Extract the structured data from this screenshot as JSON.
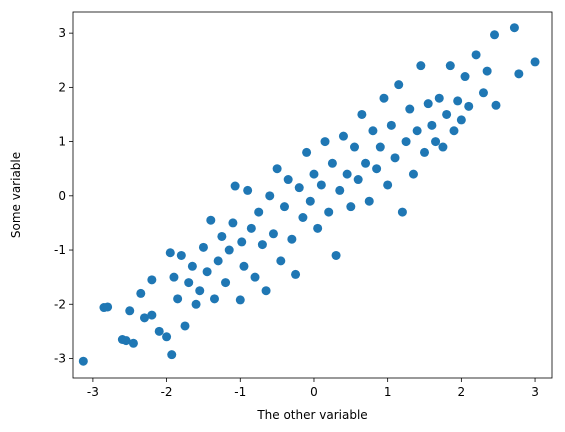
{
  "chart_data": {
    "type": "scatter",
    "x_label": "The other variable",
    "y_label": "Some variable",
    "xlim": [
      -3.27,
      3.23
    ],
    "ylim": [
      -3.36,
      3.39
    ],
    "xticks": [
      -3,
      -2,
      -1,
      0,
      1,
      2,
      3
    ],
    "yticks": [
      -3,
      -2,
      -1,
      0,
      1,
      2,
      3
    ],
    "color": "#1f77b4",
    "x": [
      -3.13,
      -2.85,
      -2.8,
      -2.6,
      -2.55,
      -2.45,
      -2.5,
      -2.35,
      -2.3,
      -2.2,
      -2.2,
      -2.1,
      -2.0,
      -1.95,
      -1.93,
      -1.9,
      -1.85,
      -1.8,
      -1.75,
      -1.7,
      -1.65,
      -1.6,
      -1.55,
      -1.5,
      -1.45,
      -1.4,
      -1.35,
      -1.3,
      -1.25,
      -1.2,
      -1.15,
      -1.1,
      -1.07,
      -1.0,
      -0.98,
      -0.95,
      -0.9,
      -0.85,
      -0.8,
      -0.75,
      -0.7,
      -0.65,
      -0.6,
      -0.55,
      -0.5,
      -0.45,
      -0.4,
      -0.35,
      -0.3,
      -0.25,
      -0.2,
      -0.15,
      -0.1,
      -0.05,
      0,
      0.05,
      0.1,
      0.15,
      0.2,
      0.25,
      0.3,
      0.35,
      0.4,
      0.45,
      0.5,
      0.55,
      0.6,
      0.65,
      0.7,
      0.75,
      0.8,
      0.85,
      0.9,
      0.95,
      1.0,
      1.05,
      1.1,
      1.15,
      1.2,
      1.25,
      1.3,
      1.35,
      1.4,
      1.45,
      1.5,
      1.55,
      1.6,
      1.65,
      1.7,
      1.75,
      1.8,
      1.85,
      1.9,
      1.95,
      2.0,
      2.05,
      2.1,
      2.2,
      2.3,
      2.35,
      2.45,
      2.47,
      2.72,
      2.78,
      3.0
    ],
    "y": [
      -3.05,
      -2.06,
      -2.05,
      -2.65,
      -2.67,
      -2.72,
      -2.12,
      -1.8,
      -2.25,
      -1.55,
      -2.2,
      -2.5,
      -2.6,
      -1.05,
      -2.93,
      -1.5,
      -1.9,
      -1.1,
      -2.4,
      -1.6,
      -1.3,
      -2.0,
      -1.75,
      -0.95,
      -1.4,
      -0.45,
      -1.9,
      -1.2,
      -0.75,
      -1.6,
      -1.0,
      -0.5,
      0.18,
      -1.92,
      -0.85,
      -1.3,
      0.1,
      -0.6,
      -1.5,
      -0.3,
      -0.9,
      -1.75,
      0.0,
      -0.7,
      0.5,
      -1.2,
      -0.2,
      0.3,
      -0.8,
      -1.45,
      0.15,
      -0.4,
      0.8,
      -0.1,
      0.4,
      -0.6,
      0.2,
      1.0,
      -0.3,
      0.6,
      -1.1,
      0.1,
      1.1,
      0.4,
      -0.2,
      0.9,
      0.3,
      1.5,
      0.6,
      -0.1,
      1.2,
      0.5,
      0.9,
      1.8,
      0.2,
      1.3,
      0.7,
      2.05,
      -0.3,
      1.0,
      1.6,
      0.4,
      1.2,
      2.4,
      0.8,
      1.7,
      1.3,
      1.0,
      1.8,
      0.9,
      1.5,
      2.4,
      1.2,
      1.75,
      1.4,
      2.2,
      1.65,
      2.6,
      1.9,
      2.3,
      2.97,
      1.67,
      3.1,
      2.25,
      2.47
    ]
  }
}
